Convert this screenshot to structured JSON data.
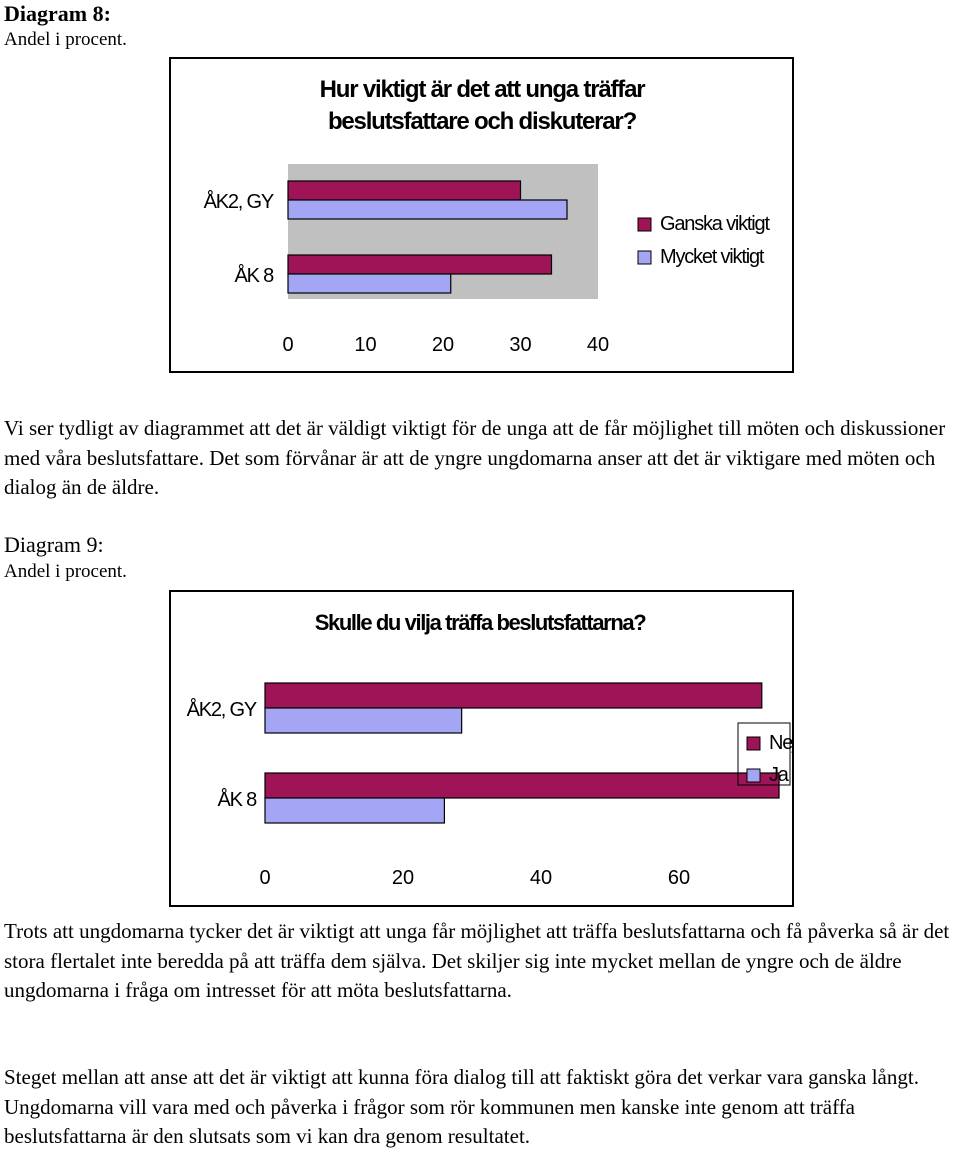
{
  "diagram8": {
    "heading": "Diagram 8:",
    "subheading": "Andel i procent."
  },
  "chart8_title_lines": [
    "Hur viktigt är det att unga träffar",
    "beslutsfattare och diskuterar?"
  ],
  "paragraph1": "Vi ser tydligt av diagrammet att det är väldigt viktigt för de unga att de får möjlighet till möten och diskussioner med våra beslutsfattare. Det som förvånar är att de yngre ungdomarna anser att det är viktigare med möten och dialog än de äldre.",
  "diagram9": {
    "heading": "Diagram 9:",
    "subheading": "Andel i procent."
  },
  "paragraph2": "Trots att ungdomarna tycker det är viktigt att unga får möjlighet att träffa beslutsfattarna och få påverka så är det stora flertalet inte beredda på att träffa dem själva. Det skiljer sig inte mycket mellan de yngre och de äldre ungdomarna i fråga om intresset för att möta beslutsfattarna.",
  "paragraph3": "Steget mellan att anse att det är viktigt att kunna föra dialog till att faktiskt göra det verkar vara ganska långt. Ungdomarna vill vara med och påverka i frågor som rör kommunen men kanske inte genom att träffa beslutsfattarna är den slutsats som vi kan dra genom resultatet.",
  "colors": {
    "series1": "#9e1457",
    "series2": "#a5a5f5",
    "plot_bg": "#c0c0c0"
  },
  "chart_data": [
    {
      "type": "bar",
      "orientation": "horizontal",
      "title": "Hur viktigt är det att unga träffar beslutsfattare och diskuterar?",
      "categories": [
        "ÅK2, GY",
        "ÅK 8"
      ],
      "series": [
        {
          "name": "Ganska viktigt",
          "values": [
            30,
            34
          ]
        },
        {
          "name": "Mycket viktigt",
          "values": [
            36,
            21
          ]
        }
      ],
      "xticks": [
        "0",
        "10",
        "20",
        "30",
        "40"
      ],
      "xlim": [
        0,
        40
      ],
      "legend": "right"
    },
    {
      "type": "bar",
      "orientation": "horizontal",
      "title": "Skulle du vilja träffa beslutsfattarna?",
      "categories": [
        "ÅK2, GY",
        "ÅK 8"
      ],
      "series": [
        {
          "name": "Nej",
          "values": [
            72,
            74.5
          ]
        },
        {
          "name": "Ja",
          "values": [
            28.5,
            26
          ]
        }
      ],
      "xticks": [
        "0",
        "20",
        "40",
        "60",
        "80"
      ],
      "xlim": [
        0,
        80
      ],
      "legend": "right"
    }
  ]
}
